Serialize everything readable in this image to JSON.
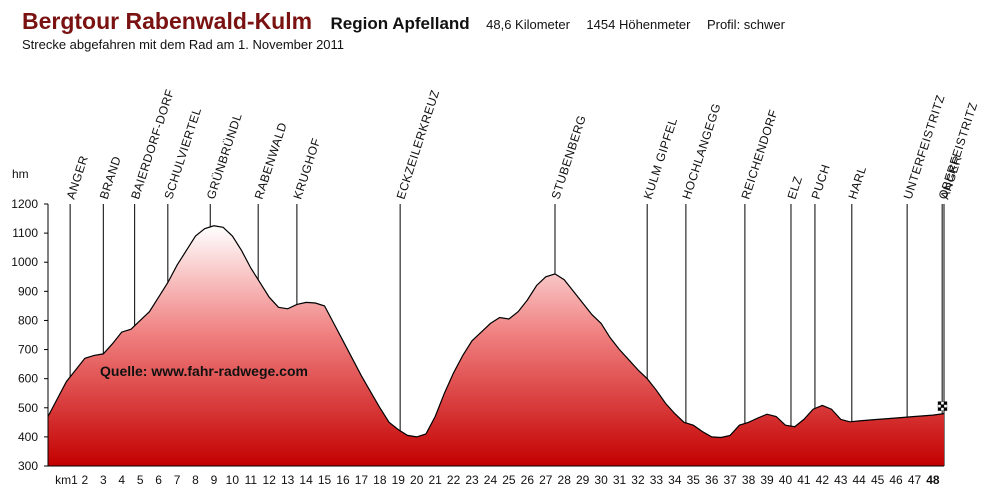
{
  "header": {
    "title": "Bergtour Rabenwald-Kulm",
    "region": "Region Apfelland",
    "distance": "48,6 Kilometer",
    "elevation": "1454 Höhenmeter",
    "profile": "Profil: schwer",
    "subtitle": "Strecke abgefahren mit dem Rad am 1. November 2011"
  },
  "source": "Quelle: www.fahr-radwege.com",
  "colors": {
    "title": "#7a1212",
    "area_top": "#ffffff",
    "area_bottom": "#c40000",
    "line": "#000000"
  },
  "chart_data": {
    "type": "area",
    "ylabel": "hm",
    "ylim": [
      300,
      1200
    ],
    "xlim": [
      0,
      48.6
    ],
    "yticks": [
      300,
      400,
      500,
      600,
      700,
      800,
      900,
      1000,
      1100,
      1200
    ],
    "xticks": [
      {
        "value": 1,
        "label": "km1"
      },
      {
        "value": 2,
        "label": "2"
      },
      {
        "value": 3,
        "label": "3"
      },
      {
        "value": 4,
        "label": "4"
      },
      {
        "value": 5,
        "label": "5"
      },
      {
        "value": 6,
        "label": "6"
      },
      {
        "value": 7,
        "label": "7"
      },
      {
        "value": 8,
        "label": "8"
      },
      {
        "value": 9,
        "label": "9"
      },
      {
        "value": 10,
        "label": "10"
      },
      {
        "value": 11,
        "label": "11"
      },
      {
        "value": 12,
        "label": "12"
      },
      {
        "value": 13,
        "label": "13"
      },
      {
        "value": 14,
        "label": "14"
      },
      {
        "value": 15,
        "label": "15"
      },
      {
        "value": 16,
        "label": "16"
      },
      {
        "value": 17,
        "label": "17"
      },
      {
        "value": 18,
        "label": "18"
      },
      {
        "value": 19,
        "label": "19"
      },
      {
        "value": 20,
        "label": "20"
      },
      {
        "value": 21,
        "label": "21"
      },
      {
        "value": 22,
        "label": "22"
      },
      {
        "value": 23,
        "label": "23"
      },
      {
        "value": 24,
        "label": "24"
      },
      {
        "value": 25,
        "label": "25"
      },
      {
        "value": 26,
        "label": "26"
      },
      {
        "value": 27,
        "label": "27"
      },
      {
        "value": 28,
        "label": "28"
      },
      {
        "value": 29,
        "label": "29"
      },
      {
        "value": 30,
        "label": "30"
      },
      {
        "value": 31,
        "label": "31"
      },
      {
        "value": 32,
        "label": "32"
      },
      {
        "value": 33,
        "label": "33"
      },
      {
        "value": 34,
        "label": "34"
      },
      {
        "value": 35,
        "label": "35"
      },
      {
        "value": 36,
        "label": "36"
      },
      {
        "value": 37,
        "label": "37"
      },
      {
        "value": 38,
        "label": "38"
      },
      {
        "value": 39,
        "label": "39"
      },
      {
        "value": 40,
        "label": "40"
      },
      {
        "value": 41,
        "label": "41"
      },
      {
        "value": 42,
        "label": "42"
      },
      {
        "value": 43,
        "label": "43"
      },
      {
        "value": 44,
        "label": "44"
      },
      {
        "value": 45,
        "label": "45"
      },
      {
        "value": 46,
        "label": "46"
      },
      {
        "value": 47,
        "label": "47"
      },
      {
        "value": 48,
        "label": "48",
        "bold": true
      }
    ],
    "profile": [
      [
        0,
        470
      ],
      [
        0.5,
        530
      ],
      [
        1,
        590
      ],
      [
        1.5,
        630
      ],
      [
        2,
        670
      ],
      [
        2.5,
        680
      ],
      [
        3,
        685
      ],
      [
        3.5,
        720
      ],
      [
        4,
        760
      ],
      [
        4.5,
        770
      ],
      [
        5,
        800
      ],
      [
        5.5,
        830
      ],
      [
        6,
        880
      ],
      [
        6.5,
        930
      ],
      [
        7,
        990
      ],
      [
        7.5,
        1040
      ],
      [
        8,
        1090
      ],
      [
        8.5,
        1115
      ],
      [
        9,
        1125
      ],
      [
        9.5,
        1120
      ],
      [
        10,
        1090
      ],
      [
        10.5,
        1040
      ],
      [
        11,
        980
      ],
      [
        11.5,
        930
      ],
      [
        12,
        880
      ],
      [
        12.5,
        845
      ],
      [
        13,
        840
      ],
      [
        13.5,
        855
      ],
      [
        14,
        862
      ],
      [
        14.5,
        860
      ],
      [
        15,
        850
      ],
      [
        15.5,
        790
      ],
      [
        16,
        730
      ],
      [
        16.5,
        670
      ],
      [
        17,
        610
      ],
      [
        17.5,
        555
      ],
      [
        18,
        500
      ],
      [
        18.5,
        450
      ],
      [
        19,
        425
      ],
      [
        19.5,
        405
      ],
      [
        20,
        400
      ],
      [
        20.5,
        410
      ],
      [
        21,
        470
      ],
      [
        21.5,
        550
      ],
      [
        22,
        620
      ],
      [
        22.5,
        680
      ],
      [
        23,
        730
      ],
      [
        23.5,
        760
      ],
      [
        24,
        790
      ],
      [
        24.5,
        810
      ],
      [
        25,
        805
      ],
      [
        25.5,
        830
      ],
      [
        26,
        870
      ],
      [
        26.5,
        920
      ],
      [
        27,
        950
      ],
      [
        27.5,
        960
      ],
      [
        28,
        940
      ],
      [
        28.5,
        900
      ],
      [
        29,
        860
      ],
      [
        29.5,
        820
      ],
      [
        30,
        790
      ],
      [
        30.5,
        740
      ],
      [
        31,
        700
      ],
      [
        31.5,
        665
      ],
      [
        32,
        630
      ],
      [
        32.5,
        600
      ],
      [
        33,
        560
      ],
      [
        33.5,
        515
      ],
      [
        34,
        480
      ],
      [
        34.5,
        450
      ],
      [
        35,
        440
      ],
      [
        35.5,
        418
      ],
      [
        36,
        400
      ],
      [
        36.5,
        398
      ],
      [
        37,
        405
      ],
      [
        37.5,
        440
      ],
      [
        38,
        450
      ],
      [
        38.5,
        465
      ],
      [
        39,
        478
      ],
      [
        39.5,
        470
      ],
      [
        40,
        440
      ],
      [
        40.5,
        435
      ],
      [
        41,
        460
      ],
      [
        41.5,
        495
      ],
      [
        42,
        508
      ],
      [
        42.5,
        495
      ],
      [
        43,
        460
      ],
      [
        43.5,
        452
      ],
      [
        44,
        455
      ],
      [
        45,
        460
      ],
      [
        46,
        465
      ],
      [
        47,
        470
      ],
      [
        48,
        475
      ],
      [
        48.6,
        480
      ]
    ],
    "locations": [
      {
        "name": "ANGER",
        "km": 1.2
      },
      {
        "name": "BRAND",
        "km": 3.0
      },
      {
        "name": "BAIERDORF-DORF",
        "km": 4.7
      },
      {
        "name": "SCHULVIERTEL",
        "km": 6.5
      },
      {
        "name": "GRÜNBRÜNDL",
        "km": 8.8
      },
      {
        "name": "RABENWALD",
        "km": 11.4
      },
      {
        "name": "KRUGHOF",
        "km": 13.5
      },
      {
        "name": "ECKZEILERKREUZ",
        "km": 19.1
      },
      {
        "name": "STUBENBERG",
        "km": 27.5
      },
      {
        "name": "KULM GIPFEL",
        "km": 32.5
      },
      {
        "name": "HOCHLANGEGG",
        "km": 34.6
      },
      {
        "name": "REICHENDORF",
        "km": 37.8
      },
      {
        "name": "ELZ",
        "km": 40.3
      },
      {
        "name": "PUCH",
        "km": 41.6
      },
      {
        "name": "HARL",
        "km": 43.6
      },
      {
        "name": "UNTERFEISTRITZ",
        "km": 46.6
      },
      {
        "name": "OBERFEISTRITZ",
        "km": 48.5
      },
      {
        "name": "ANGER",
        "km": 48.6
      }
    ]
  }
}
